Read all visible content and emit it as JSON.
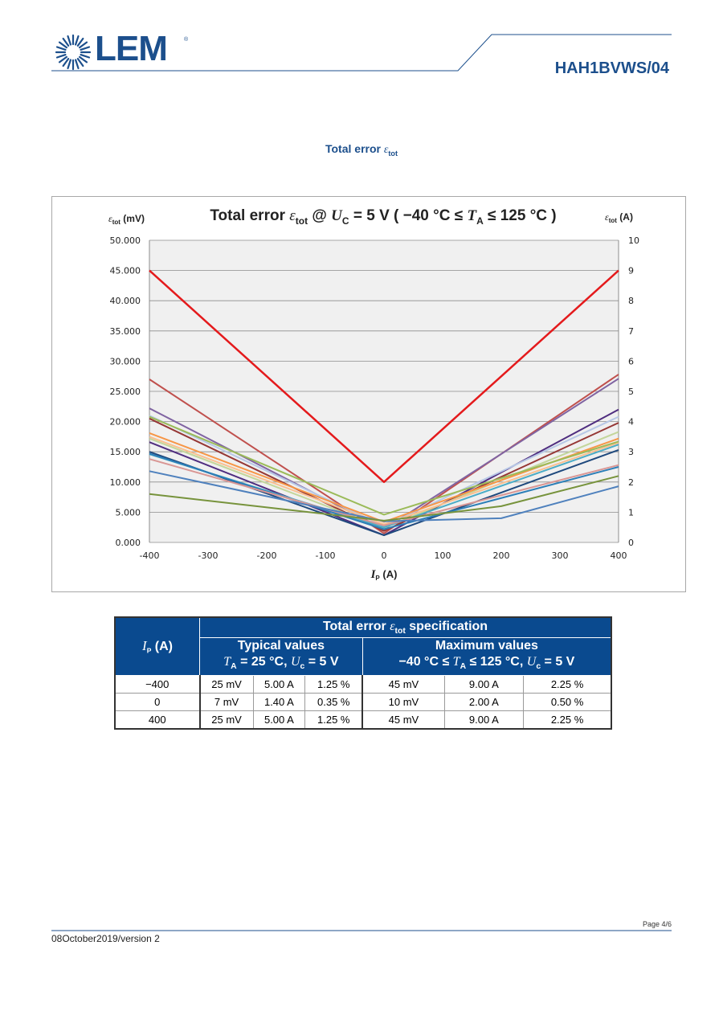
{
  "header": {
    "logo_text": "LEM",
    "logo_reg": "®",
    "doc_title": "HAH1BVWS/04"
  },
  "section": {
    "title": "Total error",
    "symbol": "ε",
    "symbol_sub": "tot"
  },
  "chart_data": {
    "type": "line",
    "title": "Total error εtot @ UC = 5 V ( −40 °C ≤ TA ≤ 125 °C )",
    "title_parts": {
      "p1": "Total error ",
      "eps": "ε",
      "eps_sub": "tot",
      "p2": " @ ",
      "u": "U",
      "u_sub": "C",
      "p3": " = 5 V ( −40 °C ≤ ",
      "t": "T",
      "t_sub": "A",
      "p4": " ≤ 125 °C )"
    },
    "ylabel_left": {
      "eps": "ε",
      "sub": "tot",
      "unit": " (mV)"
    },
    "ylabel_right": {
      "eps": "ε",
      "sub": "tot",
      "unit": " (A)"
    },
    "xlabel": {
      "sym": "I",
      "sub": "P",
      "unit": " (A)"
    },
    "x_ticks": [
      "-400",
      "-300",
      "-200",
      "-100",
      "0",
      "100",
      "200",
      "300",
      "400"
    ],
    "y_ticks_left": [
      "0.000",
      "5.000",
      "10.000",
      "15.000",
      "20.000",
      "25.000",
      "30.000",
      "35.000",
      "40.000",
      "45.000",
      "50.000"
    ],
    "y_ticks_right": [
      "0",
      "1",
      "2",
      "3",
      "4",
      "5",
      "6",
      "7",
      "8",
      "9",
      "10"
    ],
    "xlim": [
      -400,
      400
    ],
    "ylim_left": [
      0,
      50
    ],
    "ylim_right": [
      0,
      10
    ],
    "grid": true,
    "series": [
      {
        "color": "#e41a1c",
        "width": 2.5,
        "x": [
          -400,
          0,
          400
        ],
        "y": [
          45,
          10,
          45
        ]
      },
      {
        "color": "#c0504d",
        "width": 2,
        "x": [
          -400,
          0,
          400
        ],
        "y": [
          27,
          1.5,
          27.8
        ]
      },
      {
        "color": "#8064a2",
        "width": 2,
        "x": [
          -400,
          0,
          400
        ],
        "y": [
          22.2,
          2.2,
          27.1
        ]
      },
      {
        "color": "#4f2d7f",
        "width": 2,
        "x": [
          -400,
          0,
          400
        ],
        "y": [
          16.6,
          1.2,
          22
        ]
      },
      {
        "color": "#953735",
        "width": 2,
        "x": [
          -400,
          0,
          400
        ],
        "y": [
          20.5,
          1.9,
          19.8
        ]
      },
      {
        "color": "#b7c8e6",
        "width": 2,
        "x": [
          -400,
          0,
          400
        ],
        "y": [
          21,
          2.7,
          20.8
        ]
      },
      {
        "color": "#c3d69b",
        "width": 2,
        "x": [
          -400,
          0,
          400
        ],
        "y": [
          17.2,
          2.4,
          18.3
        ]
      },
      {
        "color": "#f79646",
        "width": 2,
        "x": [
          -400,
          0,
          400
        ],
        "y": [
          18.1,
          3.4,
          17.2
        ]
      },
      {
        "color": "#fac090",
        "width": 2,
        "x": [
          -400,
          0,
          400
        ],
        "y": [
          17.5,
          3,
          16.5
        ]
      },
      {
        "color": "#9bbb59",
        "width": 2,
        "x": [
          -400,
          0,
          400
        ],
        "y": [
          20.8,
          4.6,
          16.7
        ]
      },
      {
        "color": "#4bacc6",
        "width": 2,
        "x": [
          -400,
          0,
          400
        ],
        "y": [
          14.6,
          2.5,
          16.2
        ]
      },
      {
        "color": "#1f497d",
        "width": 2,
        "x": [
          -400,
          0,
          400
        ],
        "y": [
          15,
          1.2,
          15.3
        ]
      },
      {
        "color": "#2c7fb8",
        "width": 2,
        "x": [
          -400,
          0,
          400
        ],
        "y": [
          14.7,
          2.2,
          12.5
        ]
      },
      {
        "color": "#d99694",
        "width": 2,
        "x": [
          -400,
          0,
          400
        ],
        "y": [
          13.8,
          2.8,
          12.8
        ]
      },
      {
        "color": "#4f81bd",
        "width": 2,
        "x": [
          -400,
          0,
          200,
          400
        ],
        "y": [
          11.8,
          3.5,
          4,
          9.3
        ]
      },
      {
        "color": "#77933c",
        "width": 2,
        "x": [
          -400,
          0,
          200,
          400
        ],
        "y": [
          8,
          3.6,
          6,
          11
        ]
      }
    ]
  },
  "table": {
    "header_main": {
      "p1": "Total error ",
      "eps": "ε",
      "sub": "tot",
      "p2": " specification"
    },
    "ip_header": {
      "sym": "I",
      "sub": "P",
      "unit": "  (A)"
    },
    "typical": {
      "title": "Typical values",
      "cond": {
        "t": "T",
        "t_sub": "A",
        "p1": " = 25 °C, ",
        "u": "U",
        "u_sub": "c",
        "p2": " = 5 V"
      }
    },
    "maximum": {
      "title": "Maximum values",
      "cond": {
        "p0": "−40 °C ≤ ",
        "t": "T",
        "t_sub": "A",
        "p1": " ≤ 125 °C, ",
        "u": "U",
        "u_sub": "c",
        "p2": " = 5 V"
      }
    },
    "rows": [
      [
        "−400",
        "25 mV",
        "5.00 A",
        "1.25 %",
        "45 mV",
        "9.00 A",
        "2.25 %"
      ],
      [
        "0",
        "7 mV",
        "1.40 A",
        "0.35 %",
        "10 mV",
        "2.00 A",
        "0.50 %"
      ],
      [
        "400",
        "25 mV",
        "5.00 A",
        "1.25 %",
        "45 mV",
        "9.00 A",
        "2.25 %"
      ]
    ]
  },
  "footer": {
    "page": "Page 4/6",
    "date": "08October2019/version 2"
  },
  "colors": {
    "brand_blue": "#1c4f8c",
    "table_header": "#0a4a8f",
    "plot_background": "#f0f0f0"
  }
}
